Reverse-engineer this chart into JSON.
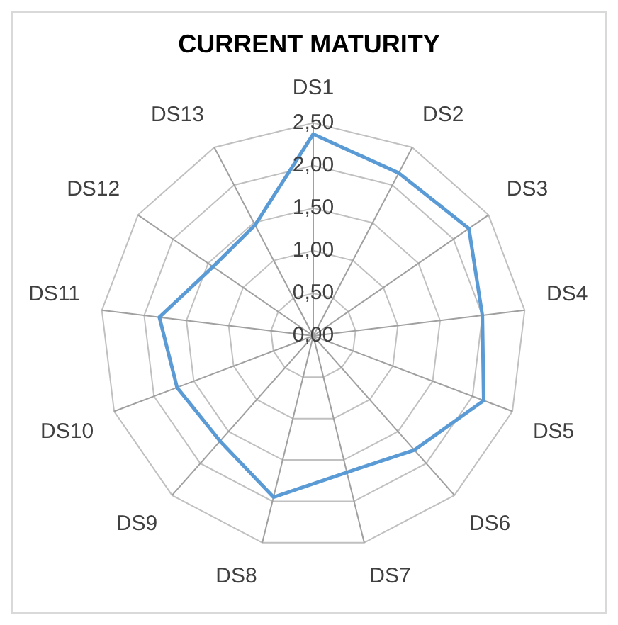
{
  "chart_data": {
    "type": "radar",
    "title": "CURRENT MATURITY",
    "categories": [
      "DS1",
      "DS2",
      "DS3",
      "DS4",
      "DS5",
      "DS6",
      "DS7",
      "DS8",
      "DS9",
      "DS10",
      "DS11",
      "DS12",
      "DS13"
    ],
    "series": [
      {
        "color": "#5b9bd5",
        "values": [
          2.37,
          2.16,
          2.22,
          2.0,
          2.14,
          1.79,
          1.65,
          1.95,
          1.65,
          1.71,
          1.82,
          1.43,
          1.47
        ]
      }
    ],
    "ylim": [
      0,
      2.5
    ],
    "yticks": [
      {
        "value": 0,
        "label": "0,00"
      },
      {
        "value": 0.5,
        "label": "0,50"
      },
      {
        "value": 1,
        "label": "1,00"
      },
      {
        "value": 1.5,
        "label": "1,50"
      },
      {
        "value": 2,
        "label": "2,00"
      },
      {
        "value": 2.5,
        "label": "2,50"
      }
    ],
    "grid": true,
    "legend": false,
    "marker": "none"
  }
}
